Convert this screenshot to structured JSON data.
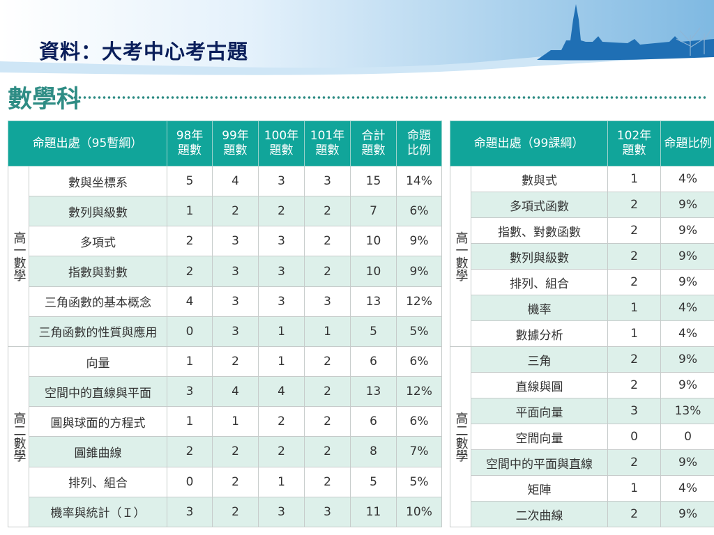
{
  "slide": {
    "title": "資料：大考中心考古題",
    "subject": "數學科"
  },
  "colors": {
    "header_bg": "#11a59a",
    "stripe_bg": "#ddf0ea",
    "title_color": "#0a1e5a",
    "subject_color": "#2e8c84"
  },
  "left_table": {
    "headers": [
      "命題出處（95暫綱）",
      "98年題數",
      "99年題數",
      "100年題數",
      "101年題數",
      "合計題數",
      "命題比例"
    ],
    "header_lines": [
      [
        "命題出處（95暫綱）"
      ],
      [
        "98年",
        "題數"
      ],
      [
        "99年",
        "題數"
      ],
      [
        "100年",
        "題數"
      ],
      [
        "101年",
        "題數"
      ],
      [
        "合計",
        "題數"
      ],
      [
        "命題",
        "比例"
      ]
    ],
    "groups": [
      {
        "label": "高一數學",
        "rows": [
          [
            "數與坐標系",
            "5",
            "4",
            "3",
            "3",
            "15",
            "14%"
          ],
          [
            "數列與級數",
            "1",
            "2",
            "2",
            "2",
            "7",
            "6%"
          ],
          [
            "多項式",
            "2",
            "3",
            "3",
            "2",
            "10",
            "9%"
          ],
          [
            "指數與對數",
            "2",
            "3",
            "3",
            "2",
            "10",
            "9%"
          ],
          [
            "三角函數的基本概念",
            "4",
            "3",
            "3",
            "3",
            "13",
            "12%"
          ],
          [
            "三角函數的性質與應用",
            "0",
            "3",
            "1",
            "1",
            "5",
            "5%"
          ]
        ]
      },
      {
        "label": "高二數學",
        "rows": [
          [
            "向量",
            "1",
            "2",
            "1",
            "2",
            "6",
            "6%"
          ],
          [
            "空間中的直線與平面",
            "3",
            "4",
            "4",
            "2",
            "13",
            "12%"
          ],
          [
            "圓與球面的方程式",
            "1",
            "1",
            "2",
            "2",
            "6",
            "6%"
          ],
          [
            "圓錐曲線",
            "2",
            "2",
            "2",
            "2",
            "8",
            "7%"
          ],
          [
            "排列、組合",
            "0",
            "2",
            "1",
            "2",
            "5",
            "5%"
          ],
          [
            "機率與統計（Ｉ）",
            "3",
            "2",
            "3",
            "3",
            "11",
            "10%"
          ]
        ]
      }
    ]
  },
  "right_table": {
    "headers": [
      "命題出處（99課綱）",
      "102年題數",
      "命題比例"
    ],
    "header_lines": [
      [
        "命題出處（99課綱）"
      ],
      [
        "102年",
        "題數"
      ],
      [
        "命題比例"
      ]
    ],
    "groups": [
      {
        "label": "高一數學",
        "rows": [
          [
            "數與式",
            "1",
            "4%"
          ],
          [
            "多項式函數",
            "2",
            "9%"
          ],
          [
            "指數、對數函數",
            "2",
            "9%"
          ],
          [
            "數列與級數",
            "2",
            "9%"
          ],
          [
            "排列、組合",
            "2",
            "9%"
          ],
          [
            "機率",
            "1",
            "4%"
          ],
          [
            "數據分析",
            "1",
            "4%"
          ]
        ]
      },
      {
        "label": "高二數學",
        "rows": [
          [
            "三角",
            "2",
            "9%"
          ],
          [
            "直線與圓",
            "2",
            "9%"
          ],
          [
            "平面向量",
            "3",
            "13%"
          ],
          [
            "空間向量",
            "0",
            "0"
          ],
          [
            "空間中的平面與直線",
            "2",
            "9%"
          ],
          [
            "矩陣",
            "1",
            "4%"
          ],
          [
            "二次曲線",
            "2",
            "9%"
          ]
        ]
      }
    ]
  }
}
